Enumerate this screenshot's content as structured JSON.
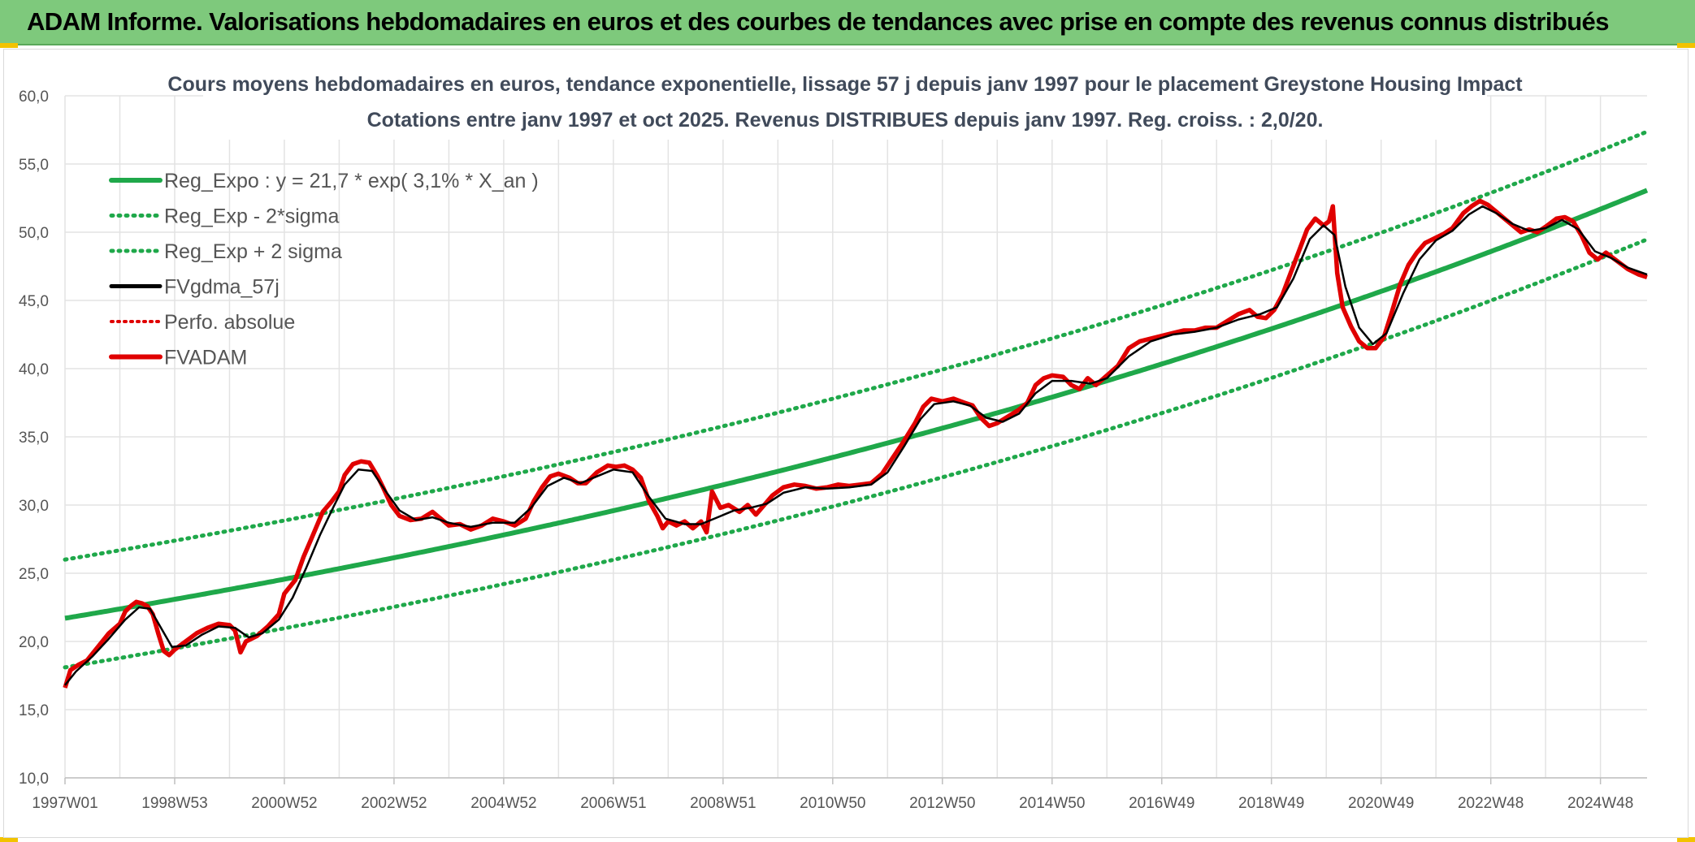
{
  "banner": {
    "title": "ADAM Informe. Valorisations hebdomadaires en euros et des courbes de tendances avec prise en compte des revenus connus distribués"
  },
  "colors": {
    "banner": "#7ec97c",
    "trend": "#1fa84a",
    "band": "#1fa84a",
    "fvgdma": "#000000",
    "perfo": "#e00000",
    "fvadam": "#e00000",
    "grid": "#e3e3e3"
  },
  "chart_data": {
    "type": "line",
    "title": [
      "Cours moyens hebdomadaires en euros, tendance exponentielle, lissage 57 j depuis janv 1997 pour le placement Greystone Housing Impact",
      "Cotations entre janv 1997 et oct 2025. Revenus DISTRIBUES depuis janv 1997. Reg. croiss. : 2,0/20."
    ],
    "x_range": [
      1997.0,
      2025.85
    ],
    "ylim": [
      10,
      60
    ],
    "y_ticks": [
      "10,0",
      "15,0",
      "20,0",
      "25,0",
      "30,0",
      "35,0",
      "40,0",
      "45,0",
      "50,0",
      "55,0",
      "60,0"
    ],
    "x_ticks": [
      {
        "label": "1997W01",
        "x": 1997.0
      },
      {
        "label": "1998W53",
        "x": 1999.0
      },
      {
        "label": "2000W52",
        "x": 2001.0
      },
      {
        "label": "2002W52",
        "x": 2003.0
      },
      {
        "label": "2004W52",
        "x": 2005.0
      },
      {
        "label": "2006W51",
        "x": 2007.0
      },
      {
        "label": "2008W51",
        "x": 2009.0
      },
      {
        "label": "2010W50",
        "x": 2011.0
      },
      {
        "label": "2012W50",
        "x": 2013.0
      },
      {
        "label": "2014W50",
        "x": 2015.0
      },
      {
        "label": "2016W49",
        "x": 2017.0
      },
      {
        "label": "2018W49",
        "x": 2019.0
      },
      {
        "label": "2020W49",
        "x": 2021.0
      },
      {
        "label": "2022W48",
        "x": 2023.0
      },
      {
        "label": "2024W48",
        "x": 2025.0
      }
    ],
    "regression": {
      "a": 21.7,
      "rate": 0.031,
      "upper_offset": 4.3,
      "lower_offset": -3.6
    },
    "legend": [
      {
        "key": "reg",
        "label": "Reg_Expo : y = 21,7 * exp( 3,1% *  X_an )"
      },
      {
        "key": "lower",
        "label": "Reg_Exp - 2*sigma"
      },
      {
        "key": "upper",
        "label": "Reg_Exp + 2 sigma"
      },
      {
        "key": "fvgdma",
        "label": "FVgdma_57j"
      },
      {
        "key": "perfo",
        "label": "Perfo. absolue"
      },
      {
        "key": "fvadam",
        "label": "FVADAM"
      }
    ],
    "series": [
      {
        "name": "FVADAM",
        "points": [
          [
            1997.0,
            16.6
          ],
          [
            1997.1,
            17.9
          ],
          [
            1997.25,
            18.3
          ],
          [
            1997.4,
            18.6
          ],
          [
            1997.6,
            19.6
          ],
          [
            1997.8,
            20.6
          ],
          [
            1998.0,
            21.3
          ],
          [
            1998.1,
            22.2
          ],
          [
            1998.2,
            22.6
          ],
          [
            1998.3,
            22.9
          ],
          [
            1998.4,
            22.8
          ],
          [
            1998.5,
            22.6
          ],
          [
            1998.6,
            22.0
          ],
          [
            1998.7,
            20.6
          ],
          [
            1998.8,
            19.3
          ],
          [
            1998.9,
            19.0
          ],
          [
            1999.0,
            19.4
          ],
          [
            1999.2,
            20.0
          ],
          [
            1999.4,
            20.6
          ],
          [
            1999.6,
            21.0
          ],
          [
            1999.8,
            21.3
          ],
          [
            2000.0,
            21.2
          ],
          [
            2000.1,
            20.8
          ],
          [
            2000.2,
            19.2
          ],
          [
            2000.3,
            20.0
          ],
          [
            2000.5,
            20.4
          ],
          [
            2000.7,
            21.1
          ],
          [
            2000.9,
            22.0
          ],
          [
            2001.0,
            23.5
          ],
          [
            2001.2,
            24.5
          ],
          [
            2001.35,
            26.2
          ],
          [
            2001.5,
            27.6
          ],
          [
            2001.7,
            29.5
          ],
          [
            2001.85,
            30.2
          ],
          [
            2002.0,
            31.0
          ],
          [
            2002.1,
            32.2
          ],
          [
            2002.25,
            33.0
          ],
          [
            2002.4,
            33.2
          ],
          [
            2002.55,
            33.1
          ],
          [
            2002.7,
            32.1
          ],
          [
            2002.8,
            31.3
          ],
          [
            2002.95,
            30.0
          ],
          [
            2003.1,
            29.2
          ],
          [
            2003.3,
            28.9
          ],
          [
            2003.5,
            29.0
          ],
          [
            2003.7,
            29.5
          ],
          [
            2003.85,
            29.0
          ],
          [
            2004.0,
            28.5
          ],
          [
            2004.2,
            28.6
          ],
          [
            2004.4,
            28.2
          ],
          [
            2004.6,
            28.5
          ],
          [
            2004.8,
            29.0
          ],
          [
            2005.0,
            28.8
          ],
          [
            2005.2,
            28.5
          ],
          [
            2005.4,
            29.0
          ],
          [
            2005.55,
            30.3
          ],
          [
            2005.7,
            31.3
          ],
          [
            2005.85,
            32.1
          ],
          [
            2006.0,
            32.3
          ],
          [
            2006.2,
            32.0
          ],
          [
            2006.35,
            31.6
          ],
          [
            2006.5,
            31.6
          ],
          [
            2006.7,
            32.4
          ],
          [
            2006.9,
            32.9
          ],
          [
            2007.05,
            32.8
          ],
          [
            2007.2,
            32.9
          ],
          [
            2007.35,
            32.6
          ],
          [
            2007.5,
            32.0
          ],
          [
            2007.65,
            30.3
          ],
          [
            2007.8,
            29.2
          ],
          [
            2007.9,
            28.3
          ],
          [
            2008.0,
            28.8
          ],
          [
            2008.15,
            28.5
          ],
          [
            2008.3,
            28.8
          ],
          [
            2008.45,
            28.3
          ],
          [
            2008.6,
            28.8
          ],
          [
            2008.7,
            28.0
          ],
          [
            2008.8,
            31.0
          ],
          [
            2008.95,
            29.8
          ],
          [
            2009.1,
            30.0
          ],
          [
            2009.3,
            29.5
          ],
          [
            2009.45,
            30.0
          ],
          [
            2009.6,
            29.3
          ],
          [
            2009.75,
            30.0
          ],
          [
            2009.9,
            30.7
          ],
          [
            2010.1,
            31.3
          ],
          [
            2010.3,
            31.5
          ],
          [
            2010.5,
            31.4
          ],
          [
            2010.7,
            31.2
          ],
          [
            2010.9,
            31.3
          ],
          [
            2011.1,
            31.5
          ],
          [
            2011.3,
            31.4
          ],
          [
            2011.5,
            31.5
          ],
          [
            2011.7,
            31.6
          ],
          [
            2011.9,
            32.3
          ],
          [
            2012.1,
            33.5
          ],
          [
            2012.3,
            34.7
          ],
          [
            2012.5,
            36.0
          ],
          [
            2012.65,
            37.2
          ],
          [
            2012.8,
            37.8
          ],
          [
            2013.0,
            37.6
          ],
          [
            2013.2,
            37.8
          ],
          [
            2013.4,
            37.5
          ],
          [
            2013.55,
            37.3
          ],
          [
            2013.7,
            36.4
          ],
          [
            2013.85,
            35.8
          ],
          [
            2014.0,
            36.0
          ],
          [
            2014.2,
            36.5
          ],
          [
            2014.4,
            37.0
          ],
          [
            2014.55,
            37.5
          ],
          [
            2014.7,
            38.8
          ],
          [
            2014.85,
            39.3
          ],
          [
            2015.0,
            39.5
          ],
          [
            2015.2,
            39.4
          ],
          [
            2015.35,
            38.8
          ],
          [
            2015.5,
            38.5
          ],
          [
            2015.65,
            39.3
          ],
          [
            2015.8,
            38.8
          ],
          [
            2016.0,
            39.5
          ],
          [
            2016.2,
            40.2
          ],
          [
            2016.4,
            41.5
          ],
          [
            2016.6,
            42.0
          ],
          [
            2016.8,
            42.2
          ],
          [
            2017.0,
            42.4
          ],
          [
            2017.2,
            42.6
          ],
          [
            2017.4,
            42.8
          ],
          [
            2017.6,
            42.8
          ],
          [
            2017.8,
            43.0
          ],
          [
            2018.0,
            43.0
          ],
          [
            2018.2,
            43.5
          ],
          [
            2018.4,
            44.0
          ],
          [
            2018.6,
            44.3
          ],
          [
            2018.75,
            43.8
          ],
          [
            2018.9,
            43.7
          ],
          [
            2019.05,
            44.3
          ],
          [
            2019.2,
            45.4
          ],
          [
            2019.35,
            47.0
          ],
          [
            2019.5,
            48.6
          ],
          [
            2019.65,
            50.2
          ],
          [
            2019.8,
            51.0
          ],
          [
            2019.95,
            50.5
          ],
          [
            2020.05,
            50.8
          ],
          [
            2020.12,
            51.9
          ],
          [
            2020.2,
            47.0
          ],
          [
            2020.3,
            44.5
          ],
          [
            2020.45,
            43.1
          ],
          [
            2020.6,
            42.0
          ],
          [
            2020.75,
            41.5
          ],
          [
            2020.9,
            41.5
          ],
          [
            2021.05,
            42.3
          ],
          [
            2021.2,
            44.2
          ],
          [
            2021.35,
            46.2
          ],
          [
            2021.5,
            47.6
          ],
          [
            2021.65,
            48.5
          ],
          [
            2021.8,
            49.2
          ],
          [
            2022.0,
            49.6
          ],
          [
            2022.15,
            49.9
          ],
          [
            2022.3,
            50.3
          ],
          [
            2022.5,
            51.4
          ],
          [
            2022.65,
            51.9
          ],
          [
            2022.8,
            52.3
          ],
          [
            2022.95,
            52.0
          ],
          [
            2023.1,
            51.5
          ],
          [
            2023.25,
            51.0
          ],
          [
            2023.4,
            50.5
          ],
          [
            2023.55,
            50.0
          ],
          [
            2023.7,
            50.2
          ],
          [
            2023.85,
            50.0
          ],
          [
            2024.0,
            50.4
          ],
          [
            2024.2,
            51.0
          ],
          [
            2024.35,
            51.1
          ],
          [
            2024.5,
            50.8
          ],
          [
            2024.65,
            49.8
          ],
          [
            2024.8,
            48.5
          ],
          [
            2024.95,
            48.0
          ],
          [
            2025.1,
            48.5
          ],
          [
            2025.3,
            47.9
          ],
          [
            2025.5,
            47.3
          ],
          [
            2025.7,
            46.9
          ],
          [
            2025.85,
            46.7
          ]
        ]
      },
      {
        "name": "FVgdma_57j",
        "points": [
          [
            1997.0,
            16.8
          ],
          [
            1997.2,
            17.8
          ],
          [
            1997.5,
            18.9
          ],
          [
            1997.8,
            20.2
          ],
          [
            1998.1,
            21.6
          ],
          [
            1998.35,
            22.5
          ],
          [
            1998.55,
            22.4
          ],
          [
            1998.75,
            21.0
          ],
          [
            1998.95,
            19.6
          ],
          [
            1999.2,
            19.7
          ],
          [
            1999.5,
            20.5
          ],
          [
            1999.8,
            21.1
          ],
          [
            2000.1,
            21.0
          ],
          [
            2000.35,
            20.3
          ],
          [
            2000.6,
            20.6
          ],
          [
            2000.9,
            21.6
          ],
          [
            2001.15,
            23.2
          ],
          [
            2001.4,
            25.4
          ],
          [
            2001.65,
            27.8
          ],
          [
            2001.9,
            29.9
          ],
          [
            2002.1,
            31.5
          ],
          [
            2002.35,
            32.6
          ],
          [
            2002.6,
            32.5
          ],
          [
            2002.85,
            31.0
          ],
          [
            2003.1,
            29.6
          ],
          [
            2003.4,
            28.9
          ],
          [
            2003.7,
            29.1
          ],
          [
            2004.0,
            28.7
          ],
          [
            2004.4,
            28.4
          ],
          [
            2004.8,
            28.7
          ],
          [
            2005.2,
            28.7
          ],
          [
            2005.5,
            29.8
          ],
          [
            2005.8,
            31.4
          ],
          [
            2006.1,
            32.0
          ],
          [
            2006.4,
            31.6
          ],
          [
            2006.7,
            32.1
          ],
          [
            2007.0,
            32.6
          ],
          [
            2007.35,
            32.4
          ],
          [
            2007.65,
            30.6
          ],
          [
            2007.95,
            29.0
          ],
          [
            2008.3,
            28.6
          ],
          [
            2008.6,
            28.6
          ],
          [
            2008.9,
            29.1
          ],
          [
            2009.2,
            29.6
          ],
          [
            2009.5,
            29.8
          ],
          [
            2009.8,
            30.1
          ],
          [
            2010.1,
            30.9
          ],
          [
            2010.5,
            31.3
          ],
          [
            2010.9,
            31.2
          ],
          [
            2011.3,
            31.3
          ],
          [
            2011.7,
            31.5
          ],
          [
            2012.0,
            32.4
          ],
          [
            2012.3,
            34.3
          ],
          [
            2012.6,
            36.3
          ],
          [
            2012.85,
            37.4
          ],
          [
            2013.2,
            37.6
          ],
          [
            2013.5,
            37.3
          ],
          [
            2013.8,
            36.4
          ],
          [
            2014.1,
            36.1
          ],
          [
            2014.4,
            36.7
          ],
          [
            2014.7,
            38.2
          ],
          [
            2015.0,
            39.1
          ],
          [
            2015.35,
            39.1
          ],
          [
            2015.7,
            38.9
          ],
          [
            2016.0,
            39.3
          ],
          [
            2016.4,
            40.9
          ],
          [
            2016.8,
            42.0
          ],
          [
            2017.2,
            42.5
          ],
          [
            2017.6,
            42.7
          ],
          [
            2018.0,
            43.0
          ],
          [
            2018.4,
            43.6
          ],
          [
            2018.8,
            44.0
          ],
          [
            2019.1,
            44.5
          ],
          [
            2019.4,
            46.6
          ],
          [
            2019.7,
            49.5
          ],
          [
            2019.95,
            50.5
          ],
          [
            2020.15,
            49.8
          ],
          [
            2020.35,
            46.0
          ],
          [
            2020.6,
            43.0
          ],
          [
            2020.85,
            41.8
          ],
          [
            2021.1,
            42.6
          ],
          [
            2021.4,
            45.5
          ],
          [
            2021.7,
            48.0
          ],
          [
            2022.0,
            49.4
          ],
          [
            2022.3,
            50.1
          ],
          [
            2022.6,
            51.3
          ],
          [
            2022.85,
            51.9
          ],
          [
            2023.1,
            51.4
          ],
          [
            2023.4,
            50.6
          ],
          [
            2023.7,
            50.1
          ],
          [
            2024.0,
            50.3
          ],
          [
            2024.3,
            50.9
          ],
          [
            2024.6,
            50.2
          ],
          [
            2024.9,
            48.6
          ],
          [
            2025.2,
            48.1
          ],
          [
            2025.5,
            47.4
          ],
          [
            2025.85,
            46.9
          ]
        ]
      }
    ]
  }
}
